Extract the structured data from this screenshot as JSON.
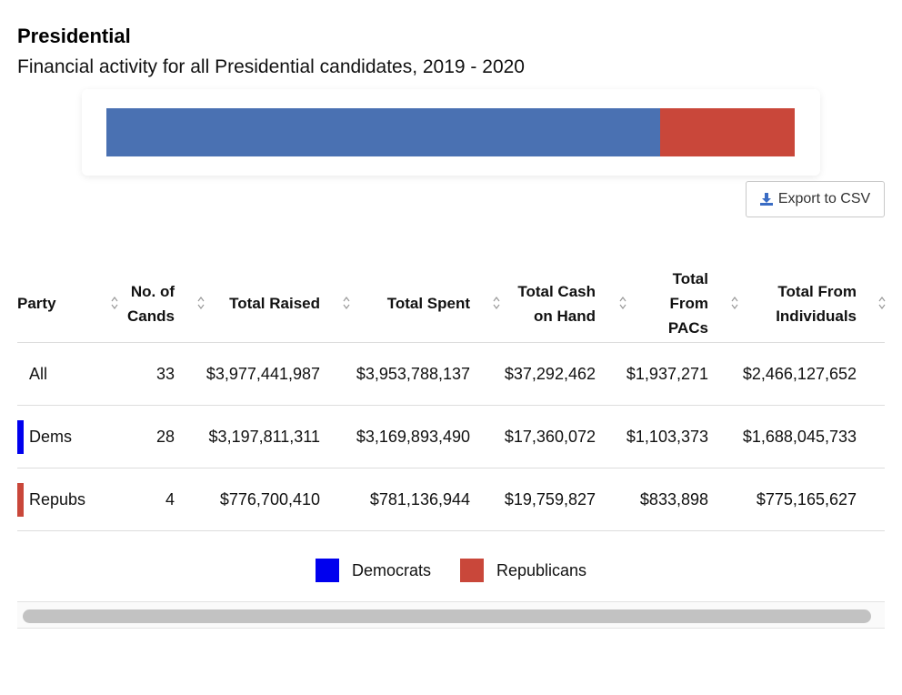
{
  "header": {
    "title": "Presidential",
    "subtitle": "Financial activity for all Presidential candidates, 2019 - 2020"
  },
  "share_bar": {
    "segments": [
      {
        "party": "Democrats",
        "value": 3197811311,
        "color": "#4a71b2"
      },
      {
        "party": "Republicans",
        "value": 776700410,
        "color": "#c9473a"
      }
    ]
  },
  "toolbar": {
    "export_label": "Export to CSV",
    "export_icon": "download-icon"
  },
  "table": {
    "columns": [
      {
        "key": "party",
        "label": "Party"
      },
      {
        "key": "cands",
        "label": "No. of Cands"
      },
      {
        "key": "raised",
        "label": "Total Raised"
      },
      {
        "key": "spent",
        "label": "Total Spent"
      },
      {
        "key": "cash",
        "label": "Total Cash on Hand"
      },
      {
        "key": "pacs",
        "label": "Total From PACs"
      },
      {
        "key": "indiv",
        "label": "Total From Individuals"
      }
    ],
    "rows": [
      {
        "party": "All",
        "cands": "33",
        "raised": "$3,977,441,987",
        "spent": "$3,953,788,137",
        "cash": "$37,292,462",
        "pacs": "$1,937,271",
        "indiv": "$2,466,127,652",
        "flag_color": ""
      },
      {
        "party": "Dems",
        "cands": "28",
        "raised": "$3,197,811,311",
        "spent": "$3,169,893,490",
        "cash": "$17,360,072",
        "pacs": "$1,103,373",
        "indiv": "$1,688,045,733",
        "flag_color": "#0000ee"
      },
      {
        "party": "Repubs",
        "cands": "4",
        "raised": "$776,700,410",
        "spent": "$781,136,944",
        "cash": "$19,759,827",
        "pacs": "$833,898",
        "indiv": "$775,165,627",
        "flag_color": "#c9473a"
      }
    ]
  },
  "legend": {
    "items": [
      {
        "label": "Democrats",
        "color": "#0000ee"
      },
      {
        "label": "Republicans",
        "color": "#c9473a"
      }
    ]
  }
}
